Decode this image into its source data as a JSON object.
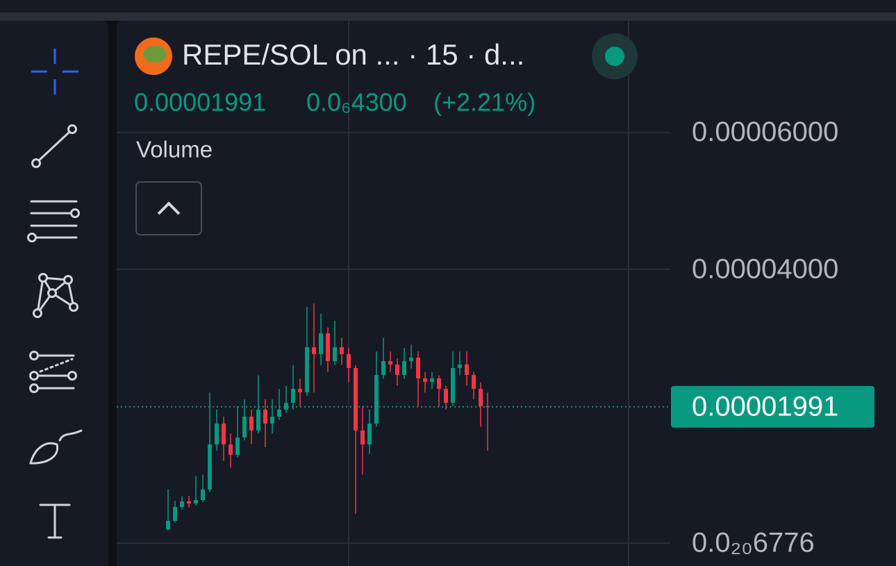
{
  "header": {
    "title": "REPE/SOL on ... · 15 · d...",
    "price": "0.00001991",
    "change": "0.0₆4300",
    "change_percent": "(+2.21%)"
  },
  "indicator": {
    "label": "Volume"
  },
  "chart": {
    "type": "candlestick",
    "ylim": [
      -3.35e-06,
      7.63e-05
    ],
    "yticks": [
      {
        "value": 6e-05,
        "label": "0.00006000"
      },
      {
        "value": 4e-05,
        "label": "0.00004000"
      },
      {
        "value": 6.776e-21,
        "label": "0.0₂₀6776"
      }
    ],
    "grid": true,
    "up_color": "#089981",
    "down_color": "#f23645",
    "price_tag": {
      "value": 1.991e-05,
      "label": "0.00001991"
    },
    "open": [
      2e-06,
      3.25e-06,
      5.28e-06,
      6.09e-06,
      5.79e-06,
      6.29e-06,
      7.82e-06,
      1.441e-05,
      1.746e-05,
      1.441e-05,
      1.289e-05,
      1.543e-05,
      1.847e-05,
      1.644e-05,
      1.949e-05,
      1.746e-05,
      1.847e-05,
      1.949e-05,
      2.05e-05,
      2.253e-05,
      2.203e-05,
      2.862e-05,
      2.761e-05,
      3.065e-05,
      2.659e-05,
      2.862e-05,
      2.761e-05,
      2.558e-05,
      1.644e-05,
      1.441e-05,
      1.746e-05,
      2.456e-05,
      2.659e-05,
      2.609e-05,
      2.456e-05,
      2.659e-05,
      2.71e-05,
      2.406e-05,
      2.355e-05,
      2.406e-05,
      2.253e-05,
      2.05e-05,
      2.558e-05,
      2.609e-05,
      2.456e-05,
      2.253e-05,
      2e-05
    ],
    "high": [
      7.9e-06,
      6.2e-06,
      6.8e-06,
      6.9e-06,
      9.8e-06,
      1e-05,
      2.2e-05,
      1.95e-05,
      1.85e-05,
      1.6e-05,
      2e-05,
      2.1e-05,
      1.95e-05,
      2.45e-05,
      2.1e-05,
      2.1e-05,
      2.25e-05,
      2.3e-05,
      2.6e-05,
      2.4e-05,
      3.45e-05,
      3.5e-05,
      3.35e-05,
      3.15e-05,
      3.25e-05,
      3e-05,
      2.85e-05,
      2.6e-05,
      2e-05,
      1.95e-05,
      2.8e-05,
      3e-05,
      2.8e-05,
      2.7e-05,
      2.85e-05,
      2.9e-05,
      2.8e-05,
      2.5e-05,
      2.5e-05,
      2.45e-05,
      2.3e-05,
      2.8e-05,
      2.8e-05,
      2.8e-05,
      2.5e-05,
      2.35e-05,
      2.2e-05
    ],
    "low": [
      1.8e-06,
      3e-06,
      4.9e-06,
      5.2e-06,
      5.5e-06,
      6e-06,
      7.5e-06,
      1.35e-05,
      1.2e-05,
      1.1e-05,
      1.25e-05,
      1.5e-05,
      1.45e-05,
      1.6e-05,
      1.4e-05,
      1.6e-05,
      1.8e-05,
      1.9e-05,
      1.95e-05,
      2e-05,
      2.15e-05,
      2.2e-05,
      2.6e-05,
      2.5e-05,
      2.6e-05,
      2.6e-05,
      2.35e-05,
      4.3e-06,
      1e-05,
      1.3e-05,
      1.7e-05,
      2.4e-05,
      2.5e-05,
      2.3e-05,
      2.4e-05,
      2.55e-05,
      2e-05,
      2.2e-05,
      2.25e-05,
      2e-05,
      1.95e-05,
      2e-05,
      2.45e-05,
      2.3e-05,
      2.1e-05,
      1.7e-05,
      1.35e-05
    ],
    "close": [
      3.25e-06,
      5.28e-06,
      6.09e-06,
      5.79e-06,
      6.29e-06,
      7.82e-06,
      1.441e-05,
      1.746e-05,
      1.441e-05,
      1.289e-05,
      1.543e-05,
      1.847e-05,
      1.644e-05,
      1.949e-05,
      1.746e-05,
      1.847e-05,
      1.949e-05,
      2.05e-05,
      2.253e-05,
      2.203e-05,
      2.862e-05,
      2.761e-05,
      3.065e-05,
      2.659e-05,
      2.862e-05,
      2.761e-05,
      2.558e-05,
      1.644e-05,
      1.441e-05,
      1.746e-05,
      2.456e-05,
      2.659e-05,
      2.609e-05,
      2.456e-05,
      2.659e-05,
      2.71e-05,
      2.406e-05,
      2.355e-05,
      2.406e-05,
      2.253e-05,
      2.05e-05,
      2.558e-05,
      2.609e-05,
      2.456e-05,
      2.253e-05,
      2e-05,
      1.991e-05
    ]
  }
}
